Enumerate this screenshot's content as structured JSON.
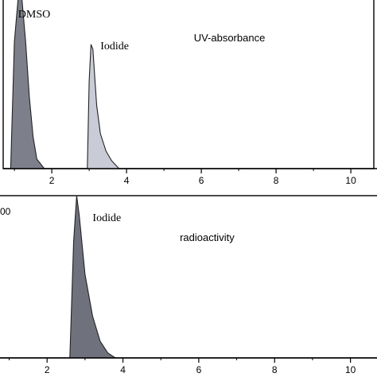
{
  "chart_data": [
    {
      "type": "area",
      "xlim": [
        0.7,
        10.7
      ],
      "ylim": [
        0,
        1
      ],
      "x_ticks": [
        2,
        4,
        6,
        8,
        10
      ],
      "x_tick_labels": [
        "2",
        "4",
        "6",
        "8",
        "10"
      ],
      "grid": false,
      "annotations": [
        {
          "text": "DMSO",
          "x": 1.1,
          "y": 0.95,
          "font": "serif"
        },
        {
          "text": "Iodide",
          "x": 3.3,
          "y": 0.75,
          "font": "serif"
        },
        {
          "text": "UV-absorbance",
          "x": 5.8,
          "y": 0.8,
          "font": "sans"
        }
      ],
      "peaks": [
        {
          "label": "DMSO",
          "x": [
            0.9,
            1.0,
            1.1,
            1.2,
            1.3,
            1.4,
            1.5,
            1.6,
            1.8
          ],
          "y": [
            0,
            0.8,
            1.1,
            1.1,
            0.8,
            0.45,
            0.2,
            0.06,
            0
          ],
          "color": "#7d808a"
        },
        {
          "label": "Iodide",
          "x": [
            2.95,
            3.0,
            3.05,
            3.1,
            3.2,
            3.3,
            3.45,
            3.6,
            3.8
          ],
          "y": [
            0,
            0.55,
            0.78,
            0.75,
            0.4,
            0.22,
            0.11,
            0.05,
            0
          ],
          "color": "#c9ccd6"
        }
      ]
    },
    {
      "type": "area",
      "xlim": [
        -0.5,
        10.7
      ],
      "ylim": [
        0,
        1
      ],
      "x_ticks": [
        2,
        4,
        6,
        8,
        10
      ],
      "x_tick_labels": [
        "2",
        "4",
        "6",
        "8",
        "10"
      ],
      "y_tick_label_partial": "00",
      "grid": false,
      "annotations": [
        {
          "text": "Iodide",
          "x": 3.2,
          "y": 0.82,
          "font": "serif"
        },
        {
          "text": "radioactivity",
          "x": 5.5,
          "y": 0.7,
          "font": "sans"
        }
      ],
      "peaks": [
        {
          "label": "Iodide",
          "x": [
            2.6,
            2.7,
            2.78,
            2.85,
            3.0,
            3.2,
            3.4,
            3.6,
            3.8
          ],
          "y": [
            0,
            0.7,
            1.0,
            0.85,
            0.5,
            0.25,
            0.1,
            0.03,
            0
          ],
          "color": "#6f727c"
        }
      ]
    }
  ]
}
